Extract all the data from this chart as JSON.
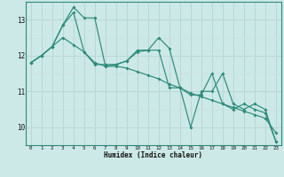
{
  "xlabel": "Humidex (Indice chaleur)",
  "x_values": [
    0,
    1,
    2,
    3,
    4,
    5,
    6,
    7,
    8,
    9,
    10,
    11,
    12,
    13,
    14,
    15,
    16,
    17,
    18,
    19,
    20,
    21,
    22,
    23
  ],
  "line1": [
    11.8,
    12.0,
    12.25,
    12.85,
    13.2,
    12.1,
    11.75,
    11.75,
    11.75,
    11.85,
    12.1,
    12.15,
    12.5,
    12.2,
    11.1,
    10.0,
    11.0,
    11.0,
    11.5,
    10.65,
    10.5,
    10.65,
    10.5,
    9.6
  ],
  "line2": [
    11.8,
    12.0,
    12.25,
    12.85,
    13.35,
    13.05,
    13.05,
    11.7,
    11.75,
    11.85,
    12.15,
    12.15,
    12.15,
    11.1,
    11.1,
    10.9,
    10.9,
    11.5,
    10.65,
    10.5,
    10.65,
    10.5,
    10.4,
    9.6
  ],
  "line3": [
    11.8,
    12.0,
    12.25,
    12.5,
    12.3,
    12.1,
    11.8,
    11.7,
    11.7,
    11.65,
    11.55,
    11.45,
    11.35,
    11.2,
    11.1,
    10.95,
    10.85,
    10.75,
    10.65,
    10.55,
    10.45,
    10.35,
    10.25,
    9.85
  ],
  "line_color": "#2d8a7a",
  "bg_color": "#cce9e7",
  "grid_major_color": "#b8d8d5",
  "grid_minor_color": "#c8e0de",
  "ylim": [
    9.5,
    13.5
  ],
  "yticks": [
    10,
    11,
    12,
    13
  ],
  "xlim": [
    -0.5,
    23.5
  ]
}
